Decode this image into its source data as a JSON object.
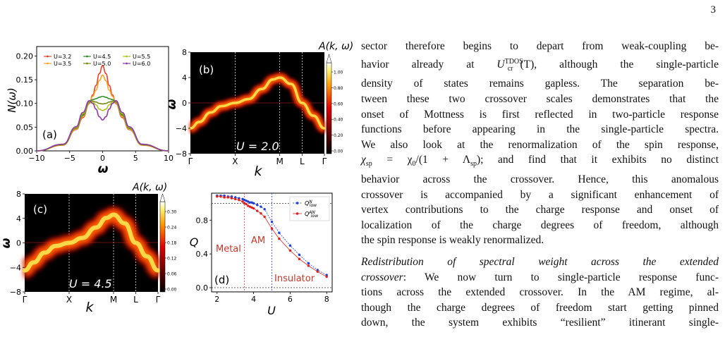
{
  "page": {
    "number": "3"
  },
  "colors": {
    "u32": "#e8412b",
    "u35": "#f5a623",
    "u45": "#2e8b2e",
    "u50": "#7a8a1a",
    "u55": "#b5c21a",
    "u60": "#8e3aa6",
    "qn": "#1f3ed6",
    "qan": "#e02020",
    "metal": "#c0392b",
    "am": "#c0392b",
    "insulator": "#c0392b"
  },
  "panel_a": {
    "label": "(a)",
    "ylabel": "N(ω)",
    "xlabel": "ω",
    "xticks": [
      "−10",
      "−5",
      "0",
      "5",
      "10"
    ],
    "yticks": [
      "0.00",
      "0.05",
      "0.10",
      "0.15",
      "0.20"
    ]
  },
  "panel_b": {
    "label": "(b)",
    "annotation": "U = 2.0",
    "ylabel": "ω",
    "xlabel": "k",
    "cbar_title": "A(k, ω)",
    "xticks": [
      "Γ",
      "X",
      "M",
      "L",
      "Γ"
    ],
    "yticks": [
      "8",
      "4",
      "0",
      "−4",
      "−8"
    ],
    "cbar_ticks": [
      "1.00",
      "0.80",
      "0.60",
      "0.40",
      "0.20",
      "0.00"
    ]
  },
  "panel_c": {
    "label": "(c)",
    "annotation": "U = 4.5",
    "ylabel": "ω",
    "xlabel": "k",
    "cbar_title": "A(k, ω)",
    "xticks": [
      "Γ",
      "X",
      "M",
      "L",
      "Γ"
    ],
    "yticks": [
      "8",
      "4",
      "0",
      "−4",
      "−8"
    ],
    "cbar_ticks": [
      "0.30",
      "0.24",
      "0.18",
      "0.12",
      "0.06",
      "0.00"
    ]
  },
  "panel_d": {
    "label": "(d)",
    "ylabel": "Q",
    "xlabel": "U",
    "xticks": [
      "2",
      "4",
      "6",
      "8"
    ],
    "yticks": [
      "0.0",
      "0.4",
      "0.8"
    ],
    "region_metal": "Metal",
    "region_am": "AM",
    "region_insulator": "Insulator",
    "legend_qn": "Q",
    "legend_qn_sup": "N",
    "legend_qn_sub": "low",
    "legend_qan": "Q",
    "legend_qan_sup": "AN",
    "legend_qan_sub": "low"
  },
  "chart_data": [
    {
      "type": "line",
      "panel": "(a)",
      "title": "",
      "xlabel": "ω",
      "ylabel": "N(ω)",
      "xlim": [
        -10,
        10
      ],
      "ylim": [
        0,
        0.22
      ],
      "legend": "top",
      "series": [
        {
          "name": "U=3.2",
          "color": "#e8412b",
          "x": [
            -10,
            -6,
            -4,
            -3,
            -2,
            -1.5,
            -1,
            -0.5,
            0,
            0.5,
            1,
            1.5,
            2,
            3,
            4,
            6,
            10
          ],
          "y": [
            0,
            0.012,
            0.045,
            0.07,
            0.1,
            0.118,
            0.138,
            0.163,
            0.18,
            0.163,
            0.138,
            0.118,
            0.1,
            0.07,
            0.045,
            0.012,
            0
          ]
        },
        {
          "name": "U=3.5",
          "color": "#f5a623",
          "x": [
            -10,
            -6,
            -4,
            -3,
            -2,
            -1.5,
            -1,
            -0.5,
            0,
            0.5,
            1,
            1.5,
            2,
            3,
            4,
            6,
            10
          ],
          "y": [
            0,
            0.012,
            0.046,
            0.072,
            0.101,
            0.115,
            0.128,
            0.148,
            0.16,
            0.148,
            0.128,
            0.115,
            0.101,
            0.072,
            0.046,
            0.012,
            0
          ]
        },
        {
          "name": "U=4.5",
          "color": "#2e8b2e",
          "x": [
            -10,
            -6,
            -4,
            -3,
            -2,
            -1.5,
            -1,
            -0.5,
            0,
            0.5,
            1,
            1.5,
            2,
            3,
            4,
            6,
            10
          ],
          "y": [
            0,
            0.013,
            0.048,
            0.075,
            0.103,
            0.108,
            0.11,
            0.113,
            0.115,
            0.113,
            0.11,
            0.108,
            0.103,
            0.075,
            0.048,
            0.013,
            0
          ]
        },
        {
          "name": "U=5.0",
          "color": "#7a8a1a",
          "x": [
            -10,
            -6,
            -4,
            -3,
            -2,
            -1.5,
            -1,
            -0.5,
            0,
            0.5,
            1,
            1.5,
            2,
            3,
            4,
            6,
            10
          ],
          "y": [
            0,
            0.013,
            0.049,
            0.077,
            0.104,
            0.105,
            0.103,
            0.1,
            0.099,
            0.1,
            0.103,
            0.105,
            0.104,
            0.077,
            0.049,
            0.013,
            0
          ]
        },
        {
          "name": "U=5.5",
          "color": "#b5c21a",
          "x": [
            -10,
            -6,
            -4,
            -3,
            -2,
            -1.5,
            -1,
            -0.5,
            0,
            0.5,
            1,
            1.5,
            2,
            3,
            4,
            6,
            10
          ],
          "y": [
            0,
            0.014,
            0.05,
            0.079,
            0.105,
            0.103,
            0.097,
            0.088,
            0.085,
            0.088,
            0.097,
            0.103,
            0.105,
            0.079,
            0.05,
            0.014,
            0
          ]
        },
        {
          "name": "U=6.0",
          "color": "#8e3aa6",
          "x": [
            -10,
            -6,
            -4,
            -3,
            -2,
            -1.5,
            -1,
            -0.5,
            0,
            0.5,
            1,
            1.5,
            2,
            3,
            4,
            6,
            10
          ],
          "y": [
            0,
            0.014,
            0.051,
            0.081,
            0.106,
            0.1,
            0.088,
            0.072,
            0.065,
            0.072,
            0.088,
            0.1,
            0.106,
            0.081,
            0.051,
            0.014,
            0
          ]
        }
      ]
    },
    {
      "type": "heatmap",
      "panel": "(b)",
      "title": "",
      "xlabel": "k",
      "ylabel": "ω",
      "ylim": [
        -8,
        8
      ],
      "k_path": [
        "Γ",
        "X",
        "M",
        "L",
        "Γ"
      ],
      "k_path_positions": [
        0,
        1,
        2,
        2.5,
        3
      ],
      "band": {
        "k": [
          0,
          0.2,
          0.45,
          0.7,
          1,
          1.3,
          1.6,
          1.85,
          2,
          2.25,
          2.5,
          2.75,
          3
        ],
        "omega": [
          -4,
          -3,
          -1.5,
          -0.5,
          0,
          0.6,
          2.2,
          3.7,
          4,
          3,
          0,
          -2,
          -4
        ]
      },
      "colorbar": {
        "label": "A(k, ω)",
        "min": 0,
        "max": 1
      },
      "annotation": "U = 2.0"
    },
    {
      "type": "heatmap",
      "panel": "(c)",
      "title": "",
      "xlabel": "k",
      "ylabel": "ω",
      "ylim": [
        -8,
        8
      ],
      "k_path": [
        "Γ",
        "X",
        "M",
        "L",
        "Γ"
      ],
      "k_path_positions": [
        0,
        1,
        2,
        2.5,
        3
      ],
      "band": {
        "k": [
          0,
          0.2,
          0.45,
          0.7,
          1,
          1.3,
          1.6,
          1.85,
          2,
          2.25,
          2.5,
          2.75,
          3
        ],
        "omega": [
          -4.5,
          -3.2,
          -1.6,
          -0.5,
          0,
          0.8,
          2.5,
          4.1,
          4.6,
          3.2,
          0,
          -2.2,
          -4.5
        ]
      },
      "colorbar": {
        "label": "A(k, ω)",
        "min": 0,
        "max": 0.3
      },
      "annotation": "U = 4.5"
    },
    {
      "type": "scatter",
      "panel": "(d)",
      "title": "",
      "xlabel": "U",
      "ylabel": "Q",
      "xlim": [
        1.7,
        8.3
      ],
      "ylim": [
        -0.05,
        1.12
      ],
      "legend": "top-right",
      "vlines": [
        3.5,
        5.0
      ],
      "hlines": [
        1.0,
        0.0
      ],
      "series": [
        {
          "name": "Q_low^N",
          "color": "#1f3ed6",
          "x": [
            2.0,
            2.2,
            2.4,
            2.6,
            2.8,
            3.0,
            3.2,
            3.4,
            3.5,
            3.6,
            3.7,
            3.8,
            3.9,
            4.0,
            4.2,
            4.4,
            4.6,
            5.0,
            5.4,
            6.0,
            6.5,
            7.0,
            7.5,
            8.0
          ],
          "y": [
            1.09,
            1.09,
            1.09,
            1.08,
            1.08,
            1.07,
            1.06,
            1.05,
            1.04,
            1.03,
            1.02,
            1.01,
            1.01,
            1.0,
            0.98,
            0.96,
            0.93,
            0.78,
            0.65,
            0.5,
            0.39,
            0.29,
            0.21,
            0.15
          ]
        },
        {
          "name": "Q_low^AN",
          "color": "#e02020",
          "x": [
            2.0,
            2.2,
            2.4,
            2.6,
            2.8,
            3.0,
            3.2,
            3.4,
            3.5,
            3.6,
            3.7,
            3.8,
            3.9,
            4.0,
            4.2,
            4.4,
            4.6,
            5.0,
            5.4,
            6.0,
            6.5,
            7.0,
            7.5,
            8.0
          ],
          "y": [
            1.08,
            1.08,
            1.07,
            1.07,
            1.06,
            1.05,
            1.04,
            1.02,
            1.0,
            0.99,
            0.97,
            0.96,
            0.95,
            0.94,
            0.91,
            0.88,
            0.84,
            0.7,
            0.58,
            0.44,
            0.34,
            0.26,
            0.19,
            0.13
          ]
        }
      ],
      "regions": [
        "Metal",
        "AM",
        "Insulator"
      ]
    }
  ],
  "text": {
    "p1_lines": [
      "sector therefore begins to depart from weak-coupling be-",
      [
        "havior already at ",
        "U",
        "TDOS",
        "cr",
        "(T), although the single-particle"
      ],
      "density of states remains gapless.  The separation be-",
      "tween these two crossover scales demonstrates that the",
      "onset of Mottness is first reflected in two-particle response",
      "functions before appearing in the single-particle spectra.",
      "We also look at the renormalization of the spin response,",
      [
        "χ",
        "sp",
        " = χ",
        "0",
        "/(1 + Λ",
        "sp",
        "); and find that it exhibits no distinct"
      ],
      "behavior across the crossover.  Hence, this anomalous",
      "crossover is accompanied by a significant enhancement of",
      "vertex contributions to the charge response and onset of",
      "localization of the charge degrees of freedom, although",
      "the spin response is weakly renormalized."
    ],
    "p2_heading_a": "Redistribution of spectral weight across the extended",
    "p2_heading_b": "crossover",
    "p2_lines": [
      ": We now turn to single-particle response func-",
      "tions across the extended crossover. In the AM regime, al-",
      "though the charge degrees of freedom start getting pinned",
      "down, the system exhibits “resilient” itinerant single-"
    ]
  }
}
